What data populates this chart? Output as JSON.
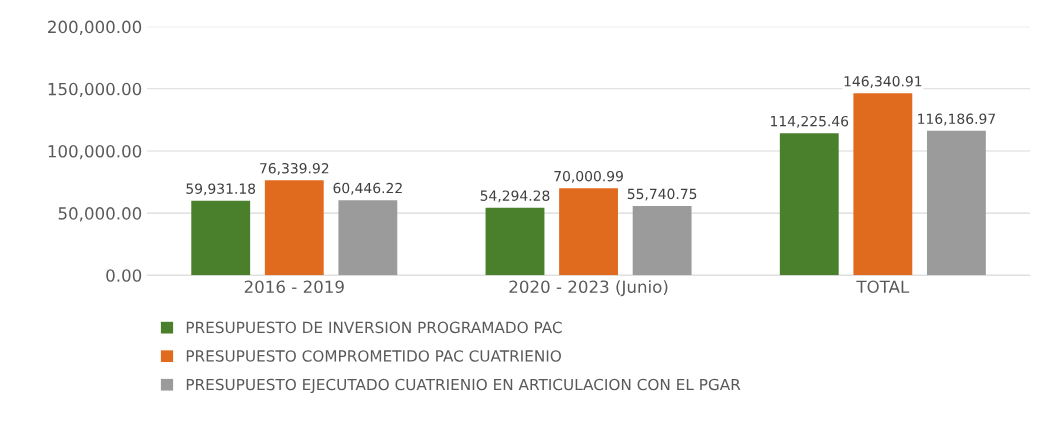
{
  "chart_data": {
    "type": "bar",
    "categories": [
      "2016 - 2019",
      "2020 - 2023 (Junio)",
      "TOTAL"
    ],
    "series": [
      {
        "name": "PRESUPUESTO DE INVERSION PROGRAMADO PAC",
        "color": "#4a7f2c",
        "values": [
          59931.18,
          54294.28,
          114225.46
        ],
        "value_labels": [
          "59,931.18",
          "54,294.28",
          "114,225.46"
        ]
      },
      {
        "name": "PRESUPUESTO COMPROMETIDO PAC CUATRIENIO",
        "color": "#e06b1e",
        "values": [
          76339.92,
          70000.99,
          146340.91
        ],
        "value_labels": [
          "76,339.92",
          "70,000.99",
          "146,340.91"
        ]
      },
      {
        "name": "PRESUPUESTO EJECUTADO CUATRIENIO EN ARTICULACION CON EL PGAR",
        "color": "#9b9b9b",
        "values": [
          60446.22,
          55740.75,
          116186.97
        ],
        "value_labels": [
          "60,446.22",
          "55,740.75",
          "116,186.97"
        ]
      }
    ],
    "ylim": [
      0,
      200000
    ],
    "yticks": [
      {
        "value": 0,
        "label": "0.00"
      },
      {
        "value": 50000,
        "label": "50,000.00"
      },
      {
        "value": 100000,
        "label": "100,000.00"
      },
      {
        "value": 150000,
        "label": "150,000.00"
      },
      {
        "value": 200000,
        "label": "200,000.00"
      }
    ],
    "grid": "y",
    "legend": "bottom"
  }
}
